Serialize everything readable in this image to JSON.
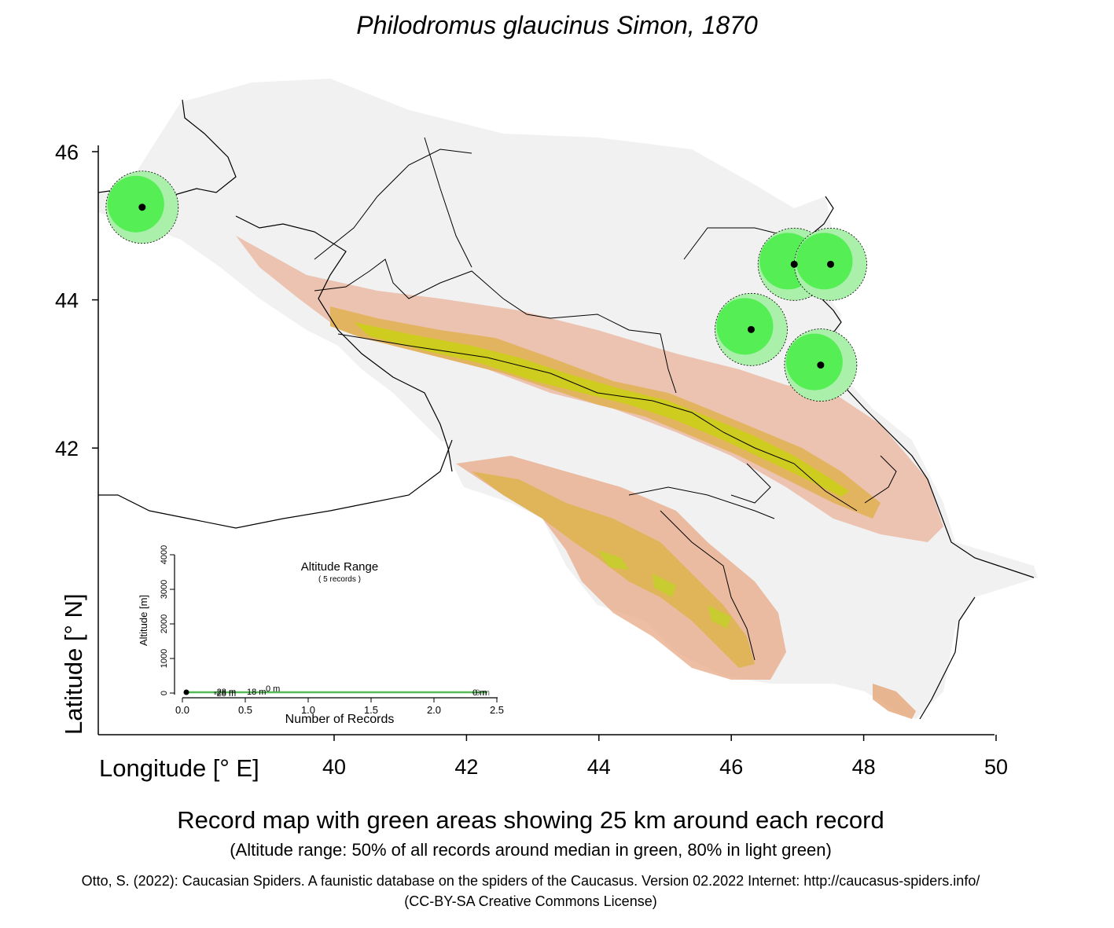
{
  "title": "Philodromus glaucinus Simon, 1870",
  "axes": {
    "y_label": "Latitude [° N]",
    "x_label": "Longitude [° E]",
    "lat_ticks": [
      "46",
      "44",
      "42"
    ],
    "lon_ticks": [
      "40",
      "42",
      "44",
      "46",
      "48",
      "50"
    ]
  },
  "records": [
    {
      "lon": 37.1,
      "lat": 45.25
    },
    {
      "lon": 46.95,
      "lat": 44.48
    },
    {
      "lon": 47.5,
      "lat": 44.48
    },
    {
      "lon": 46.3,
      "lat": 43.6
    },
    {
      "lon": 47.35,
      "lat": 43.12
    }
  ],
  "inset": {
    "title": "Altitude Range",
    "subtitle": "( 5 records )",
    "y_label": "Altitude [m]",
    "x_label": "Number of Records",
    "y_ticks": [
      "0",
      "1000",
      "2000",
      "3000",
      "4000"
    ],
    "x_ticks": [
      "0.0",
      "0.5",
      "1.0",
      "1.5",
      "2.0",
      "2.5"
    ],
    "point_labels": [
      "-28  m",
      "-28  m",
      "18  m",
      "0  m",
      "0  m",
      "-9  m"
    ]
  },
  "caption": {
    "main": "Record map with green areas showing 25 km around each record",
    "sub": "(Altitude range: 50% of all records around median in green, 80% in light green)"
  },
  "citation": "Otto, S. (2022): Caucasian Spiders. A faunistic database on the spiders of the Caucasus. Version 02.2022 Internet: http://caucasus-spiders.info/",
  "license": "(CC-BY-SA Creative Commons License)",
  "colors": {
    "buffer_green": "#55ee55",
    "buffer_light_green": "#aaf0aa",
    "lowland": "#efefef",
    "foothills": "#e8a88a",
    "highland": "#e0b050",
    "alpine": "#cccc00",
    "record_point": "#000000"
  }
}
